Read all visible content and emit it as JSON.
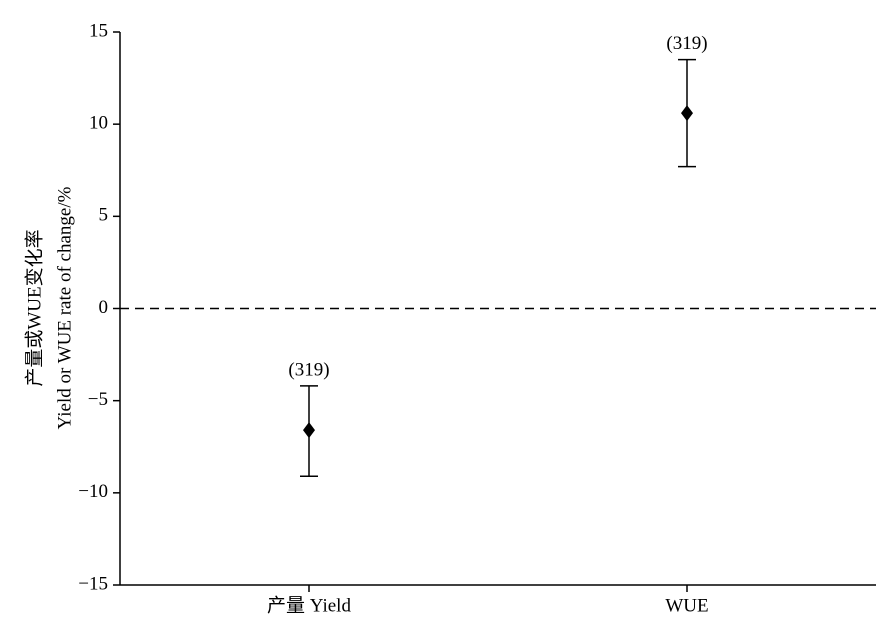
{
  "chart_data": {
    "type": "errorbar",
    "ylabel": [
      "产量或WUE变化率",
      "Yield or WUE rate of change/%"
    ],
    "categories": [
      "产量 Yield",
      "WUE"
    ],
    "values": [
      -6.6,
      10.6
    ],
    "lower": [
      -9.1,
      7.7
    ],
    "upper": [
      -4.2,
      13.5
    ],
    "annotations": [
      "(319)",
      "(319)"
    ],
    "color": "#000000",
    "reference_line": 0,
    "ylim": [
      -15,
      15
    ],
    "yticks": [
      {
        "value": -15,
        "label": "−15"
      },
      {
        "value": -10,
        "label": "−10"
      },
      {
        "value": -5,
        "label": "−5"
      },
      0,
      5,
      10,
      15
    ]
  }
}
